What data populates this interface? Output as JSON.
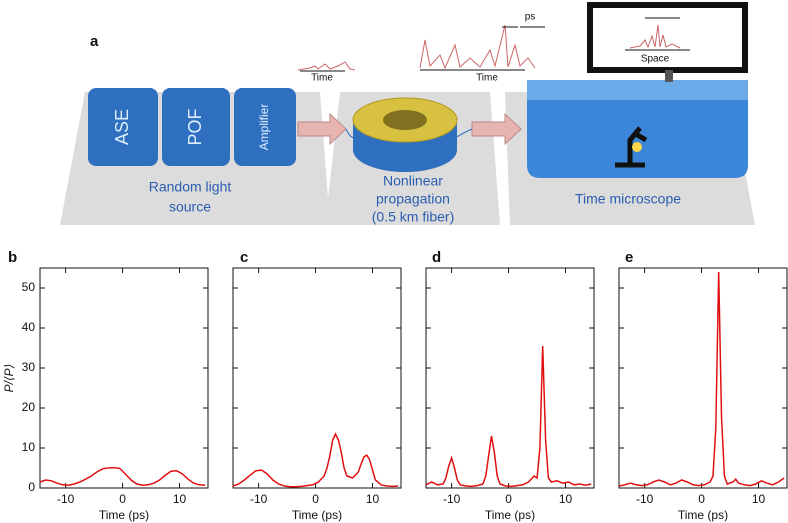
{
  "diagram": {
    "panel_label": "a",
    "boxes": [
      "ASE",
      "POF",
      "Amplifier"
    ],
    "stages": [
      {
        "lines": [
          "Random light",
          "source"
        ]
      },
      {
        "lines": [
          "Nonlinear",
          "propagation",
          "(0.5 km fiber)"
        ]
      },
      {
        "lines": [
          "Time microscope"
        ]
      }
    ],
    "trace_labels": [
      "Time",
      "Time",
      "ps",
      "Space"
    ]
  },
  "chart_data": [
    {
      "type": "line",
      "label": "b",
      "xlabel": "Time (ps)",
      "ylabel": "P/⟨P⟩",
      "color": "#e01010",
      "x": [
        -14.5,
        -13.5,
        -12.5,
        -11.5,
        -10.5,
        -9.5,
        -8.5,
        -7.5,
        -6.5,
        -5.5,
        -4.5,
        -3.5,
        -2.5,
        -1.5,
        -0.5,
        0.5,
        1.5,
        2.5,
        3.5,
        4.5,
        5.5,
        6.5,
        7.5,
        8.5,
        9.5,
        10.5,
        11.5,
        12.5,
        13.5,
        14.5
      ],
      "values": [
        1.5,
        2,
        1.8,
        1.2,
        0.8,
        0.7,
        1,
        1.5,
        2.2,
        3,
        4,
        4.8,
        5,
        5.1,
        4.9,
        3.5,
        2,
        1,
        0.7,
        0.8,
        1.2,
        2,
        3.2,
        4.2,
        4.3,
        3.5,
        2.2,
        1.2,
        0.8,
        0.7
      ],
      "xlim": [
        -14.5,
        15
      ],
      "ylim": [
        0,
        55
      ],
      "xticks": [
        -10,
        0,
        10
      ],
      "yticks": [
        0,
        10,
        20,
        30,
        40,
        50
      ],
      "ytick_labels": true
    },
    {
      "type": "line",
      "label": "c",
      "xlabel": "Time (ps)",
      "color": "#e01010",
      "x": [
        -14.5,
        -13.5,
        -12.5,
        -11.5,
        -10.5,
        -9.5,
        -8.5,
        -7.5,
        -6.5,
        -5.5,
        -4.5,
        -3.5,
        -2.5,
        -1.5,
        -0.5,
        0.5,
        1.5,
        2,
        2.5,
        3,
        3.5,
        4,
        4.5,
        5,
        5.5,
        6.5,
        7.5,
        8,
        8.5,
        9,
        9.5,
        10,
        10.5,
        11.5,
        12.5,
        13.5,
        14.5
      ],
      "values": [
        0.5,
        1,
        2,
        3.2,
        4.3,
        4.5,
        3.5,
        2,
        1,
        0.5,
        0.3,
        0.3,
        0.4,
        0.6,
        0.8,
        1.5,
        3,
        5,
        8,
        12,
        13.5,
        12,
        9,
        5,
        3,
        2.5,
        4,
        6,
        7.8,
        8.2,
        7,
        4.5,
        2,
        0.8,
        0.5,
        0.4,
        0.5
      ],
      "xlim": [
        -14.5,
        15
      ],
      "ylim": [
        0,
        55
      ],
      "xticks": [
        -10,
        0,
        10
      ],
      "yticks": [
        0,
        10,
        20,
        30,
        40,
        50
      ],
      "ytick_labels": false
    },
    {
      "type": "line",
      "label": "d",
      "xlabel": "Time (ps)",
      "color": "#e01010",
      "x": [
        -14.5,
        -13.5,
        -12.5,
        -11.5,
        -11,
        -10.5,
        -10,
        -9.5,
        -9,
        -8.5,
        -7.5,
        -6.5,
        -5.5,
        -4.5,
        -4,
        -3.5,
        -3,
        -2.5,
        -2,
        -1.5,
        -0.5,
        0.5,
        1.5,
        2.5,
        3.5,
        4.5,
        5,
        5.5,
        6,
        6.5,
        7,
        7.5,
        8.5,
        9.5,
        10.5,
        11.5,
        12.5,
        13.5,
        14.5
      ],
      "values": [
        0.8,
        1.5,
        0.8,
        1,
        2.5,
        5.5,
        7.5,
        5,
        2,
        0.8,
        0.5,
        0.4,
        0.6,
        1,
        3,
        8,
        13,
        9,
        3,
        1,
        0.5,
        0.4,
        0.6,
        0.8,
        1.5,
        3,
        2.5,
        10,
        35.5,
        12,
        2.5,
        1.5,
        1.8,
        1.2,
        1.5,
        0.8,
        1,
        0.7,
        1
      ],
      "xlim": [
        -14.5,
        15
      ],
      "ylim": [
        0,
        55
      ],
      "xticks": [
        -10,
        0,
        10
      ],
      "yticks": [
        0,
        10,
        20,
        30,
        40,
        50
      ],
      "ytick_labels": false
    },
    {
      "type": "line",
      "label": "e",
      "xlabel": "Time (ps)",
      "color": "#e01010",
      "x": [
        -14.5,
        -13.5,
        -12.5,
        -11.5,
        -10.5,
        -9.5,
        -8.5,
        -7.5,
        -6.5,
        -5.5,
        -4.5,
        -3.5,
        -2.5,
        -1.5,
        -0.5,
        0.5,
        1.5,
        2,
        2.5,
        3,
        3.5,
        4,
        4.5,
        5.5,
        6,
        6.5,
        7.5,
        8.5,
        9.5,
        10.5,
        11.5,
        12.5,
        13.5,
        14.5
      ],
      "values": [
        0.5,
        0.8,
        1.2,
        0.8,
        0.6,
        0.8,
        1.5,
        2,
        1.5,
        0.8,
        1.2,
        2,
        1.5,
        0.8,
        0.6,
        0.8,
        1.5,
        3,
        15,
        54,
        18,
        3,
        1,
        1.5,
        2.2,
        1.2,
        0.8,
        0.6,
        1,
        1.8,
        1.2,
        0.8,
        1.5,
        2.5
      ],
      "xlim": [
        -14.5,
        15
      ],
      "ylim": [
        0,
        55
      ],
      "xticks": [
        -10,
        0,
        10
      ],
      "yticks": [
        0,
        10,
        20,
        30,
        40,
        50
      ],
      "ytick_labels": false
    }
  ]
}
